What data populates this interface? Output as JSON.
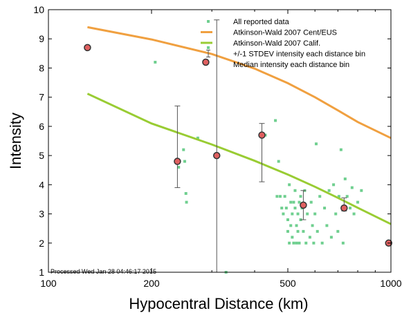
{
  "footer_text": "Processed Wed Jan 28 04:46:17 2015",
  "chart_data": {
    "type": "scatter",
    "xlabel": "Hypocentral Distance (km)",
    "ylabel": "Intensity",
    "xscale": "log",
    "xlim": [
      100,
      1000
    ],
    "ylim": [
      1,
      10
    ],
    "xticks": [
      100,
      200,
      500,
      1000
    ],
    "yticks": [
      1,
      2,
      3,
      4,
      5,
      6,
      7,
      8,
      9,
      10
    ],
    "grid": false,
    "legend_position": "top-right",
    "colors": {
      "reported": "#6fcf8f",
      "cent_eus": "#f0a040",
      "calif": "#99cc33",
      "median_fill": "#e06060",
      "median_edge": "#333333",
      "stdev": "#555555"
    },
    "legend": [
      {
        "label": "All reported data",
        "marker": "dot"
      },
      {
        "label": "Atkinson-Wald 2007 Cent/EUS",
        "marker": "line-orange"
      },
      {
        "label": "Atkinson-Wald 2007 Calif.",
        "marker": "line-green"
      },
      {
        "label": "+/-1 STDEV intensity each distance bin",
        "marker": "errorbar"
      },
      {
        "label": "Median intensity each distance bin",
        "marker": "circle"
      }
    ],
    "series": [
      {
        "name": "All reported data",
        "points": [
          [
            130,
            8.7
          ],
          [
            205,
            8.2
          ],
          [
            240,
            4.6
          ],
          [
            248,
            5.2
          ],
          [
            250,
            4.8
          ],
          [
            252,
            3.7
          ],
          [
            253,
            3.4
          ],
          [
            273,
            5.6
          ],
          [
            330,
            1.0
          ],
          [
            430,
            5.7
          ],
          [
            460,
            6.2
          ],
          [
            470,
            4.8
          ],
          [
            465,
            3.6
          ],
          [
            475,
            3.6
          ],
          [
            480,
            3.2
          ],
          [
            485,
            3.0
          ],
          [
            490,
            3.6
          ],
          [
            495,
            3.2
          ],
          [
            500,
            2.8
          ],
          [
            500,
            2.4
          ],
          [
            505,
            4.0
          ],
          [
            505,
            2.0
          ],
          [
            510,
            3.4
          ],
          [
            510,
            2.6
          ],
          [
            515,
            3.0
          ],
          [
            515,
            2.2
          ],
          [
            520,
            3.4
          ],
          [
            520,
            2.0
          ],
          [
            525,
            3.8
          ],
          [
            525,
            3.2
          ],
          [
            530,
            2.6
          ],
          [
            530,
            2.0
          ],
          [
            535,
            3.0
          ],
          [
            535,
            2.4
          ],
          [
            540,
            3.4
          ],
          [
            540,
            2.0
          ],
          [
            545,
            3.6
          ],
          [
            545,
            2.8
          ],
          [
            550,
            3.2
          ],
          [
            555,
            2.4
          ],
          [
            560,
            3.8
          ],
          [
            565,
            2.0
          ],
          [
            570,
            3.0
          ],
          [
            580,
            2.2
          ],
          [
            585,
            3.4
          ],
          [
            590,
            2.6
          ],
          [
            595,
            2.0
          ],
          [
            600,
            3.0
          ],
          [
            605,
            5.4
          ],
          [
            610,
            2.4
          ],
          [
            620,
            3.6
          ],
          [
            630,
            2.0
          ],
          [
            640,
            3.2
          ],
          [
            650,
            2.6
          ],
          [
            660,
            3.8
          ],
          [
            670,
            2.2
          ],
          [
            680,
            4.0
          ],
          [
            690,
            3.0
          ],
          [
            700,
            2.4
          ],
          [
            705,
            3.6
          ],
          [
            715,
            5.2
          ],
          [
            725,
            2.0
          ],
          [
            735,
            4.2
          ],
          [
            745,
            3.6
          ],
          [
            760,
            3.2
          ],
          [
            770,
            3.9
          ],
          [
            780,
            3.0
          ],
          [
            800,
            3.4
          ],
          [
            820,
            3.8
          ]
        ]
      },
      {
        "name": "Atkinson-Wald 2007 Cent/EUS",
        "points": [
          [
            130,
            9.4
          ],
          [
            200,
            8.98
          ],
          [
            300,
            8.48
          ],
          [
            400,
            7.98
          ],
          [
            500,
            7.48
          ],
          [
            600,
            7.0
          ],
          [
            700,
            6.55
          ],
          [
            800,
            6.15
          ],
          [
            1000,
            5.6
          ]
        ]
      },
      {
        "name": "Atkinson-Wald 2007 Calif.",
        "points": [
          [
            130,
            7.12
          ],
          [
            200,
            6.1
          ],
          [
            300,
            5.38
          ],
          [
            400,
            4.82
          ],
          [
            500,
            4.35
          ],
          [
            600,
            3.93
          ],
          [
            700,
            3.55
          ],
          [
            800,
            3.21
          ],
          [
            1000,
            2.65
          ]
        ]
      },
      {
        "name": "Median intensity each distance bin",
        "points": [
          [
            130,
            8.7
          ],
          [
            238,
            4.8
          ],
          [
            288,
            8.2
          ],
          [
            310,
            5.0
          ],
          [
            420,
            5.7
          ],
          [
            555,
            3.3
          ],
          [
            730,
            3.2
          ],
          [
            985,
            2.0
          ]
        ]
      },
      {
        "name": "+/-1 STDEV intensity each distance bin",
        "bars": [
          {
            "x": 238,
            "low": 3.9,
            "high": 6.7
          },
          {
            "x": 310,
            "low": 1.0,
            "high": 9.65
          },
          {
            "x": 420,
            "low": 4.1,
            "high": 6.1
          },
          {
            "x": 555,
            "low": 2.8,
            "high": 3.8
          },
          {
            "x": 730,
            "low": 3.1,
            "high": 3.55
          }
        ]
      }
    ]
  }
}
